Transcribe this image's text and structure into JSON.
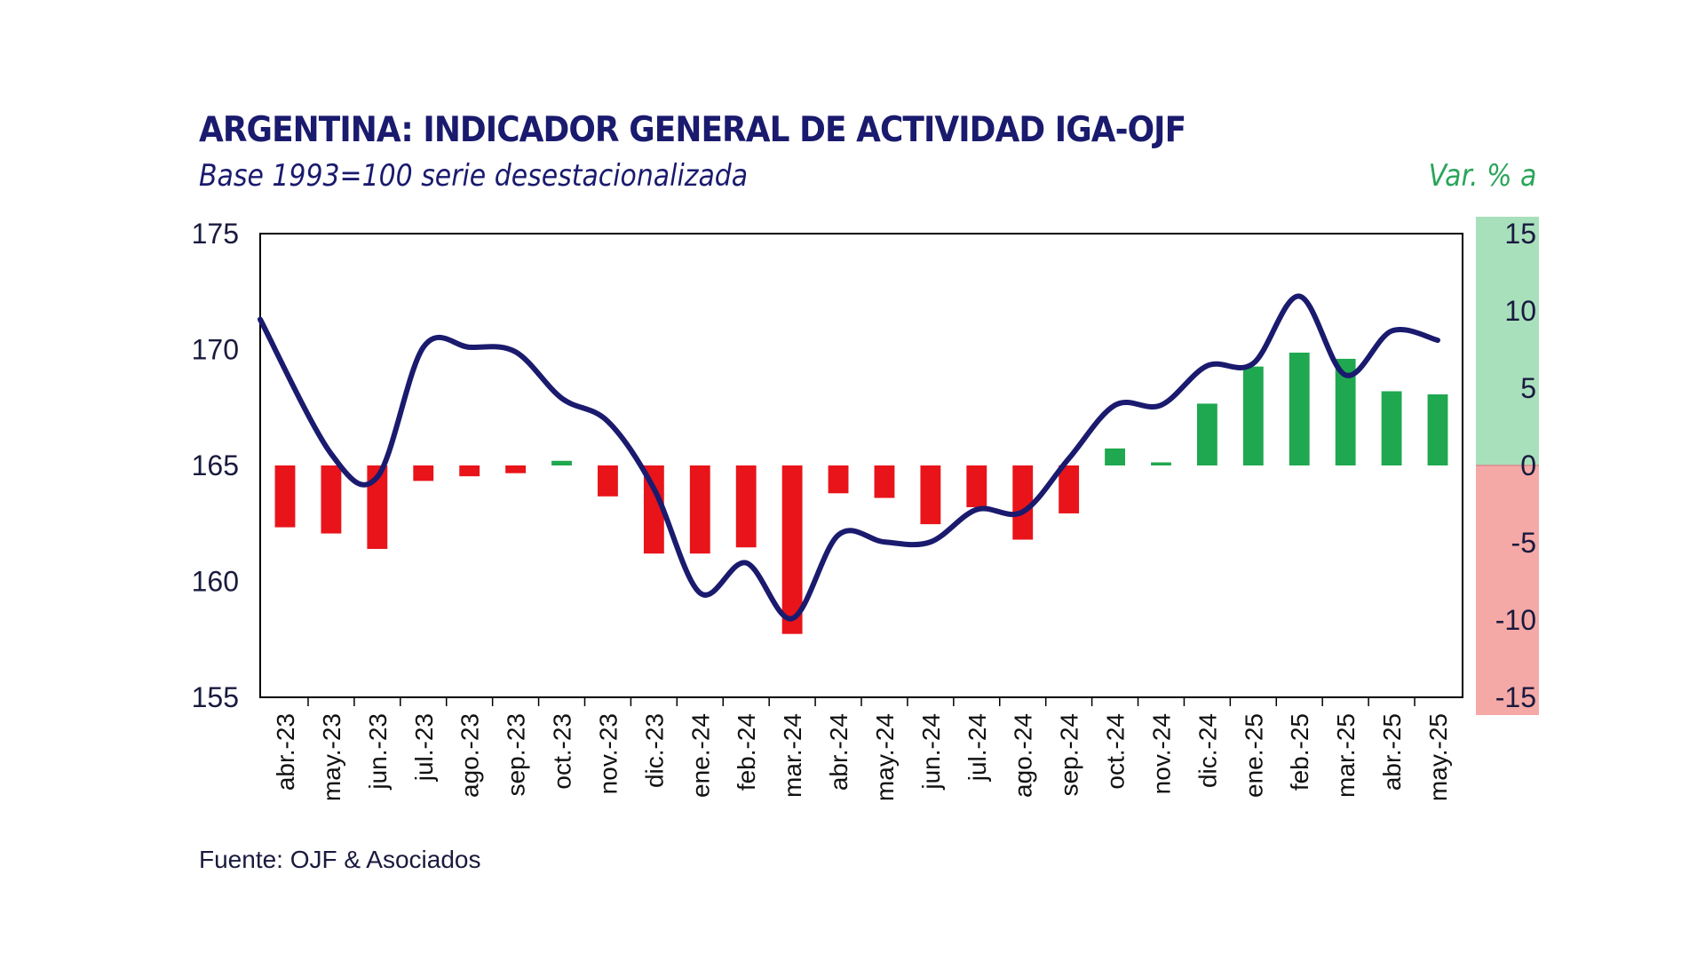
{
  "chart_data": {
    "type": "bar+line",
    "title": "ARGENTINA: INDICADOR GENERAL DE ACTIVIDAD IGA-OJF",
    "subtitle": "Base 1993=100 serie desestacionalizada",
    "right_axis_label": "Var. % a",
    "source": "Fuente: OJF & Asociados",
    "categories": [
      "abr.-23",
      "may.-23",
      "jun.-23",
      "jul.-23",
      "ago.-23",
      "sep.-23",
      "oct.-23",
      "nov.-23",
      "dic.-23",
      "ene.-24",
      "feb.-24",
      "mar.-24",
      "abr.-24",
      "may.-24",
      "jun.-24",
      "jul.-24",
      "ago.-24",
      "sep.-24",
      "oct.-24",
      "nov.-24",
      "dic.-24",
      "ene.-25",
      "feb.-25",
      "mar.-25",
      "abr.-25",
      "may.-25"
    ],
    "left_axis": {
      "ylim": [
        155,
        175
      ],
      "ticks": [
        "155",
        "160",
        "165",
        "170",
        "175"
      ]
    },
    "right_axis": {
      "ylim": [
        -15,
        15
      ],
      "ticks": [
        "-15",
        "-10",
        "-5",
        "0",
        "5",
        "10",
        "15"
      ]
    },
    "series": [
      {
        "type": "line",
        "axis": "left",
        "color": "#1a1a6e",
        "values": [
          171.3,
          165.5,
          164.5,
          170.1,
          170.1,
          169.9,
          167.9,
          166.9,
          164.0,
          159.5,
          160.8,
          158.4,
          162.0,
          161.7,
          161.7,
          163.1,
          163.0,
          165.3,
          167.6,
          167.6,
          169.3,
          169.4,
          172.3,
          168.9,
          170.8,
          170.4
        ]
      },
      {
        "type": "bar",
        "axis": "right",
        "positive_color": "#1fa84f",
        "negative_color": "#e8141a",
        "values": [
          -4.0,
          -4.4,
          -5.4,
          -1.0,
          -0.7,
          -0.5,
          0.3,
          -2.0,
          -5.7,
          -5.7,
          -5.3,
          -10.9,
          -1.8,
          -2.1,
          -3.8,
          -2.7,
          -4.8,
          -3.1,
          1.1,
          0.2,
          4.0,
          6.4,
          7.3,
          6.9,
          4.8,
          4.6
        ]
      }
    ],
    "right_axis_bands": {
      "positive_color": "#a8e0bc",
      "negative_color": "#f4a9a6"
    },
    "grid": false,
    "legend": "none"
  }
}
